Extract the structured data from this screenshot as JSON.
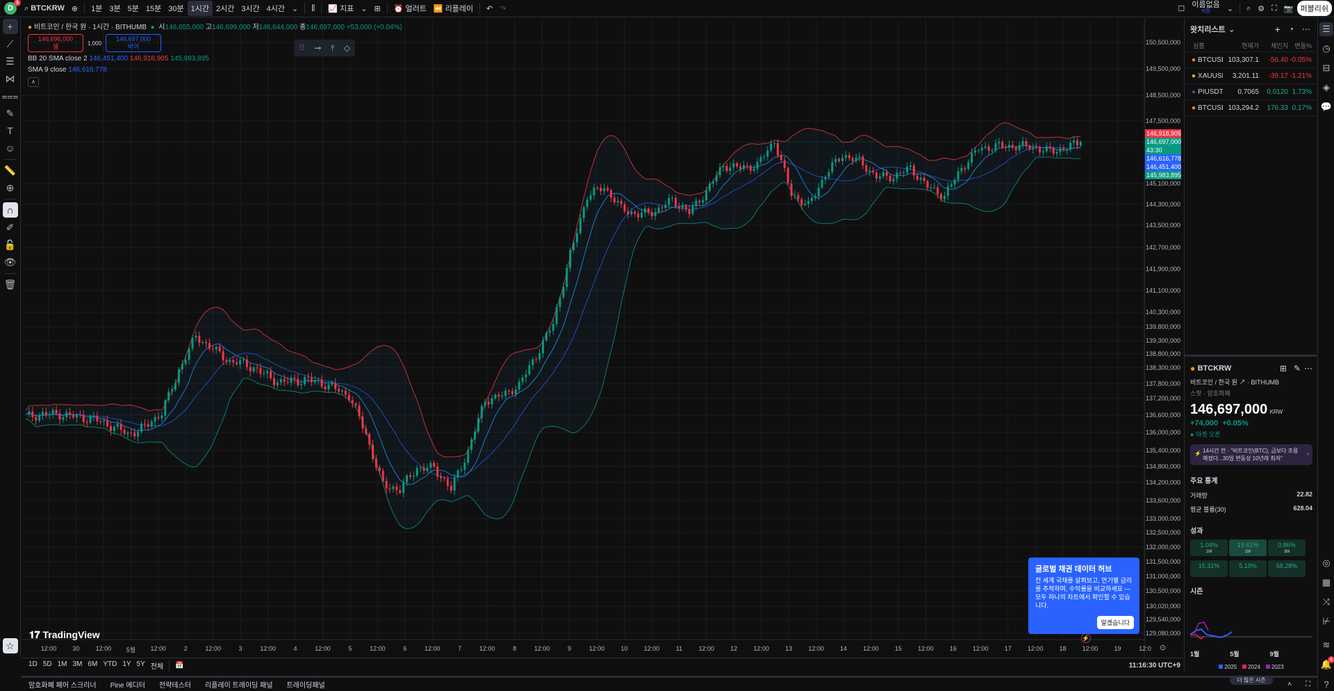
{
  "topbar": {
    "avatar_letter": "D",
    "notification_count": "3",
    "symbol": "BTCKRW",
    "intervals": [
      "1분",
      "3분",
      "5분",
      "15분",
      "30분",
      "1시간",
      "2시간",
      "3시간",
      "4시간"
    ],
    "active_interval": "1시간",
    "indicators_label": "지표",
    "alert_label": "얼러트",
    "replay_label": "리플레이",
    "layout_name": "이름없음",
    "layout_status": "저장",
    "publish_label": "퍼블리쉬"
  },
  "legend": {
    "title": "비트코인 / 한국 원 · 1시간 · BITHUMB",
    "o_label": "시",
    "o": "146,655,000",
    "h_label": "고",
    "h": "146,699,000",
    "l_label": "저",
    "l": "146,644,000",
    "c_label": "종",
    "c": "146,697,000",
    "change": "+53,000 (+0.04%)",
    "sell_price": "146,696,000",
    "sell_label": "셀",
    "spread": "1,000",
    "buy_price": "146,697,000",
    "buy_label": "바이",
    "bb_label": "BB 20 SMA close 2",
    "bb_basis": "146,451,400",
    "bb_upper": "146,918,905",
    "bb_lower": "145,983,895",
    "sma_label": "SMA 9 close",
    "sma_value": "146,616,778"
  },
  "price_axis": [
    "150,500,000",
    "149,500,000",
    "148,500,000",
    "147,500,000",
    "145,100,000",
    "144,300,000",
    "143,500,000",
    "142,700,000",
    "141,900,000",
    "141,100,000",
    "140,300,000",
    "139,800,000",
    "139,300,000",
    "138,800,000",
    "138,300,000",
    "137,800,000",
    "137,200,000",
    "136,600,000",
    "136,000,000",
    "135,400,000",
    "134,800,000",
    "134,200,000",
    "133,600,000",
    "133,000,000",
    "132,500,000",
    "132,000,000",
    "131,500,000",
    "131,000,000",
    "130,500,000",
    "130,020,000",
    "129,540,000",
    "129,080,000"
  ],
  "price_labels": {
    "bb_upper": "146,918,905",
    "last": "146,697,000",
    "countdown": "43:30",
    "sma": "146,616,778",
    "bb_basis": "146,451,400",
    "bb_lower": "145,983,895"
  },
  "time_axis": [
    "12:00",
    "30",
    "12:00",
    "5월",
    "12:00",
    "2",
    "12:00",
    "3",
    "12:00",
    "4",
    "12:00",
    "5",
    "12:00",
    "6",
    "12:00",
    "7",
    "12:00",
    "8",
    "12:00",
    "9",
    "12:00",
    "10",
    "12:00",
    "11",
    "12:00",
    "12",
    "12:00",
    "13",
    "12:00",
    "14",
    "12:00",
    "15",
    "12:00",
    "16",
    "12:00",
    "17",
    "12:00",
    "18",
    "12:00",
    "19",
    "12:0"
  ],
  "chart_data": {
    "type": "candlestick",
    "scale": "log",
    "closes_millions_krw": [
      136.54,
      136.63,
      136.63,
      136.54,
      136.45,
      136.24,
      135.94,
      136.18,
      136.7,
      138.22,
      139.45,
      138.99,
      138.52,
      138.42,
      138.09,
      137.83,
      137.91,
      137.88,
      137.66,
      137.31,
      135.94,
      134.11,
      133.97,
      134.74,
      134.74,
      133.97,
      135.37,
      137.14,
      137.31,
      137.73,
      138.74,
      139.92,
      142.41,
      144.63,
      144.97,
      144.14,
      143.9,
      144.04,
      144.47,
      143.98,
      144.8,
      145.8,
      145.7,
      145.8,
      146.75,
      144.7,
      144.24,
      145.46,
      146.2,
      145.95,
      145.36,
      145.36,
      145.69,
      144.97,
      144.63,
      145.69,
      146.43,
      146.53,
      146.53,
      146.53,
      146.33,
      146.43,
      146.697
    ],
    "colors": {
      "up": "#089981",
      "down": "#f23645",
      "bb_upper": "#f23645",
      "bb_lower": "#089981",
      "bb_basis": "#2962ff",
      "sma": "#2196f3"
    }
  },
  "brand": "TradingView",
  "ranges": [
    "1D",
    "5D",
    "1M",
    "3M",
    "6M",
    "YTD",
    "1Y",
    "5Y",
    "전체"
  ],
  "clock": "11:16:30 UTC+9",
  "bottom_tabs": [
    "암호화폐 페어 스크리너",
    "Pine 에디터",
    "전략테스터",
    "리플레이 트레이딩 패널",
    "트레이딩패널"
  ],
  "watchlist": {
    "title": "왓치리스트",
    "columns": [
      "심볼",
      "현재가",
      "체인지",
      "변동%"
    ],
    "rows": [
      {
        "symbol": "BTCUSD",
        "price": "103,307.1",
        "change": "-56.40",
        "pct": "-0.05%",
        "dir": "down"
      },
      {
        "symbol": "XAUUSD",
        "price": "3,201.11",
        "change": "-39.17",
        "pct": "-1.21%",
        "dir": "down"
      },
      {
        "symbol": "PIUSDT",
        "price": "0.7065",
        "change": "0.0120",
        "pct": "1.73%",
        "dir": "up"
      },
      {
        "symbol": "BTCUSD",
        "price": "103,294.2",
        "change": "176.33",
        "pct": "0.17%",
        "dir": "up"
      }
    ]
  },
  "details": {
    "symbol": "BTCKRW",
    "name": "비트코인 / 한국 원",
    "exchange": "BITHUMB",
    "type": "스팟 · 암호화폐",
    "price": "146,697,000",
    "currency": "KRW",
    "change": "+74,000",
    "change_pct": "+0.05%",
    "market_status": "마켓 오픈",
    "news": "14시간 전 · \"비트코인(BTC), 금보다 조용해졌다...30일 변동성 10년래 최저\"",
    "stats_title": "주요 통계",
    "volume_label": "거래량",
    "volume": "22.82",
    "avg_volume_label": "평균 볼륨(30)",
    "avg_volume": "628.04",
    "perf_title": "성과",
    "perf": [
      {
        "v": "1.04%",
        "p": "1W"
      },
      {
        "v": "19.61%",
        "p": "1M"
      },
      {
        "v": "0.86%",
        "p": "3M"
      },
      {
        "v": "15.31%",
        "p": ""
      },
      {
        "v": "5.19%",
        "p": ""
      },
      {
        "v": "58.28%",
        "p": ""
      }
    ],
    "season_title": "시즌",
    "season_axis": [
      "1월",
      "5월",
      "9월"
    ],
    "season_legend": [
      {
        "y": "2025",
        "c": "#2962ff"
      },
      {
        "y": "2024",
        "c": "#e91e63"
      },
      {
        "y": "2023",
        "c": "#9c27b0"
      }
    ],
    "more_seasons": "더 많은 시즌"
  },
  "popup": {
    "title": "글로벌 채권 데이터 허브",
    "body": "전 세계 국채를 살펴보고, 만기별 금리를 추적하며, 수익률을 비교하세요 — 모두 하나의 차트에서 확인할 수 있습니다.",
    "button": "알겠습니다"
  },
  "alerts_badge": "8"
}
